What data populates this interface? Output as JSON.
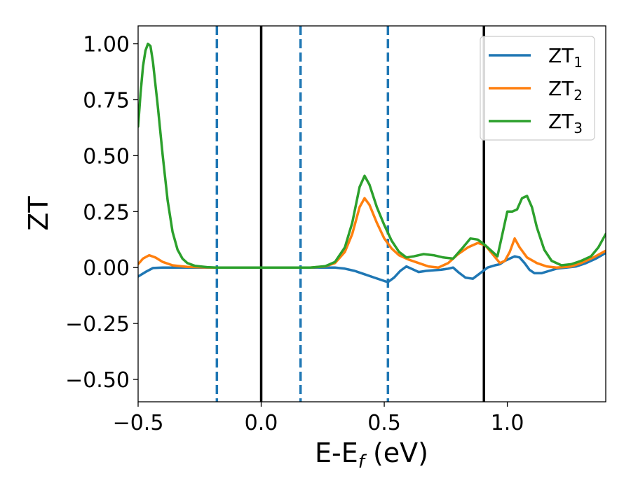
{
  "chart_data": {
    "type": "line",
    "xlabel": {
      "base": "E-E",
      "sub": "f",
      "suffix": " (eV)"
    },
    "ylabel": "ZT",
    "xlim": [
      -0.5,
      1.4
    ],
    "ylim": [
      -0.6,
      1.08
    ],
    "x_ticks": [
      {
        "value": -0.5,
        "label": "−0.5"
      },
      {
        "value": 0.0,
        "label": "0.0"
      },
      {
        "value": 0.5,
        "label": "0.5"
      },
      {
        "value": 1.0,
        "label": "1.0"
      }
    ],
    "y_ticks": [
      {
        "value": 1.0,
        "label": "1.00"
      },
      {
        "value": 0.75,
        "label": "0.75"
      },
      {
        "value": 0.5,
        "label": "0.50"
      },
      {
        "value": 0.25,
        "label": "0.25"
      },
      {
        "value": 0.0,
        "label": "0.00"
      },
      {
        "value": -0.25,
        "label": "−0.25"
      },
      {
        "value": -0.5,
        "label": "−0.50"
      }
    ],
    "grid": false,
    "legend_position": "top-right",
    "vertical_lines": [
      {
        "x": -0.18,
        "style": "dashed",
        "color": "#1f77b4"
      },
      {
        "x": 0.0,
        "style": "solid",
        "color": "#000000"
      },
      {
        "x": 0.16,
        "style": "dashed",
        "color": "#1f77b4"
      },
      {
        "x": 0.515,
        "style": "dashed",
        "color": "#1f77b4"
      },
      {
        "x": 0.905,
        "style": "solid",
        "color": "#000000"
      }
    ],
    "series": [
      {
        "name": "ZT",
        "sub": "1",
        "color": "#1f77b4",
        "points": [
          [
            -0.5,
            -0.04
          ],
          [
            -0.47,
            -0.02
          ],
          [
            -0.44,
            -0.002
          ],
          [
            -0.4,
            0.0
          ],
          [
            -0.3,
            0.0
          ],
          [
            0.0,
            0.0
          ],
          [
            0.3,
            0.0
          ],
          [
            0.34,
            -0.005
          ],
          [
            0.38,
            -0.015
          ],
          [
            0.42,
            -0.03
          ],
          [
            0.46,
            -0.045
          ],
          [
            0.5,
            -0.06
          ],
          [
            0.515,
            -0.065
          ],
          [
            0.54,
            -0.045
          ],
          [
            0.565,
            -0.015
          ],
          [
            0.59,
            0.005
          ],
          [
            0.61,
            -0.005
          ],
          [
            0.64,
            -0.02
          ],
          [
            0.67,
            -0.015
          ],
          [
            0.7,
            -0.012
          ],
          [
            0.73,
            -0.01
          ],
          [
            0.76,
            -0.005
          ],
          [
            0.78,
            0.0
          ],
          [
            0.8,
            -0.02
          ],
          [
            0.83,
            -0.045
          ],
          [
            0.86,
            -0.05
          ],
          [
            0.89,
            -0.025
          ],
          [
            0.92,
            0.0
          ],
          [
            0.95,
            0.01
          ],
          [
            0.97,
            0.015
          ],
          [
            0.99,
            0.03
          ],
          [
            1.01,
            0.04
          ],
          [
            1.03,
            0.05
          ],
          [
            1.05,
            0.045
          ],
          [
            1.07,
            0.02
          ],
          [
            1.09,
            -0.01
          ],
          [
            1.11,
            -0.025
          ],
          [
            1.14,
            -0.025
          ],
          [
            1.17,
            -0.015
          ],
          [
            1.2,
            -0.005
          ],
          [
            1.24,
            0.0
          ],
          [
            1.28,
            0.005
          ],
          [
            1.32,
            0.02
          ],
          [
            1.36,
            0.04
          ],
          [
            1.4,
            0.065
          ]
        ]
      },
      {
        "name": "ZT",
        "sub": "2",
        "color": "#ff7f0e",
        "points": [
          [
            -0.5,
            0.015
          ],
          [
            -0.48,
            0.04
          ],
          [
            -0.455,
            0.055
          ],
          [
            -0.43,
            0.045
          ],
          [
            -0.4,
            0.025
          ],
          [
            -0.36,
            0.01
          ],
          [
            -0.3,
            0.003
          ],
          [
            -0.2,
            0.0
          ],
          [
            0.0,
            0.0
          ],
          [
            0.2,
            0.0
          ],
          [
            0.26,
            0.005
          ],
          [
            0.3,
            0.02
          ],
          [
            0.34,
            0.07
          ],
          [
            0.37,
            0.15
          ],
          [
            0.4,
            0.27
          ],
          [
            0.42,
            0.31
          ],
          [
            0.44,
            0.28
          ],
          [
            0.47,
            0.2
          ],
          [
            0.5,
            0.13
          ],
          [
            0.53,
            0.085
          ],
          [
            0.56,
            0.055
          ],
          [
            0.6,
            0.035
          ],
          [
            0.64,
            0.02
          ],
          [
            0.68,
            0.005
          ],
          [
            0.72,
            0.0
          ],
          [
            0.76,
            0.02
          ],
          [
            0.8,
            0.06
          ],
          [
            0.84,
            0.09
          ],
          [
            0.88,
            0.11
          ],
          [
            0.91,
            0.1
          ],
          [
            0.94,
            0.06
          ],
          [
            0.97,
            0.02
          ],
          [
            0.99,
            0.03
          ],
          [
            1.01,
            0.07
          ],
          [
            1.03,
            0.13
          ],
          [
            1.05,
            0.09
          ],
          [
            1.08,
            0.045
          ],
          [
            1.12,
            0.02
          ],
          [
            1.16,
            0.005
          ],
          [
            1.2,
            0.0
          ],
          [
            1.26,
            0.005
          ],
          [
            1.3,
            0.02
          ],
          [
            1.35,
            0.045
          ],
          [
            1.4,
            0.075
          ]
        ]
      },
      {
        "name": "ZT",
        "sub": "3",
        "color": "#2ca02c",
        "points": [
          [
            -0.5,
            0.63
          ],
          [
            -0.49,
            0.78
          ],
          [
            -0.48,
            0.9
          ],
          [
            -0.47,
            0.97
          ],
          [
            -0.46,
            1.0
          ],
          [
            -0.45,
            0.99
          ],
          [
            -0.44,
            0.92
          ],
          [
            -0.42,
            0.72
          ],
          [
            -0.4,
            0.5
          ],
          [
            -0.38,
            0.3
          ],
          [
            -0.36,
            0.16
          ],
          [
            -0.34,
            0.08
          ],
          [
            -0.32,
            0.04
          ],
          [
            -0.3,
            0.02
          ],
          [
            -0.27,
            0.008
          ],
          [
            -0.22,
            0.002
          ],
          [
            -0.18,
            0.0
          ],
          [
            0.0,
            0.0
          ],
          [
            0.2,
            0.0
          ],
          [
            0.26,
            0.006
          ],
          [
            0.3,
            0.025
          ],
          [
            0.34,
            0.09
          ],
          [
            0.37,
            0.2
          ],
          [
            0.4,
            0.36
          ],
          [
            0.42,
            0.41
          ],
          [
            0.44,
            0.37
          ],
          [
            0.47,
            0.27
          ],
          [
            0.5,
            0.19
          ],
          [
            0.53,
            0.12
          ],
          [
            0.56,
            0.07
          ],
          [
            0.59,
            0.045
          ],
          [
            0.62,
            0.05
          ],
          [
            0.66,
            0.06
          ],
          [
            0.7,
            0.055
          ],
          [
            0.74,
            0.045
          ],
          [
            0.78,
            0.04
          ],
          [
            0.82,
            0.09
          ],
          [
            0.85,
            0.13
          ],
          [
            0.88,
            0.125
          ],
          [
            0.91,
            0.1
          ],
          [
            0.94,
            0.07
          ],
          [
            0.96,
            0.05
          ],
          [
            0.98,
            0.15
          ],
          [
            1.0,
            0.25
          ],
          [
            1.02,
            0.25
          ],
          [
            1.04,
            0.26
          ],
          [
            1.06,
            0.31
          ],
          [
            1.08,
            0.32
          ],
          [
            1.1,
            0.27
          ],
          [
            1.12,
            0.18
          ],
          [
            1.15,
            0.08
          ],
          [
            1.18,
            0.03
          ],
          [
            1.22,
            0.01
          ],
          [
            1.26,
            0.015
          ],
          [
            1.3,
            0.03
          ],
          [
            1.34,
            0.05
          ],
          [
            1.37,
            0.09
          ],
          [
            1.4,
            0.15
          ]
        ]
      }
    ]
  }
}
